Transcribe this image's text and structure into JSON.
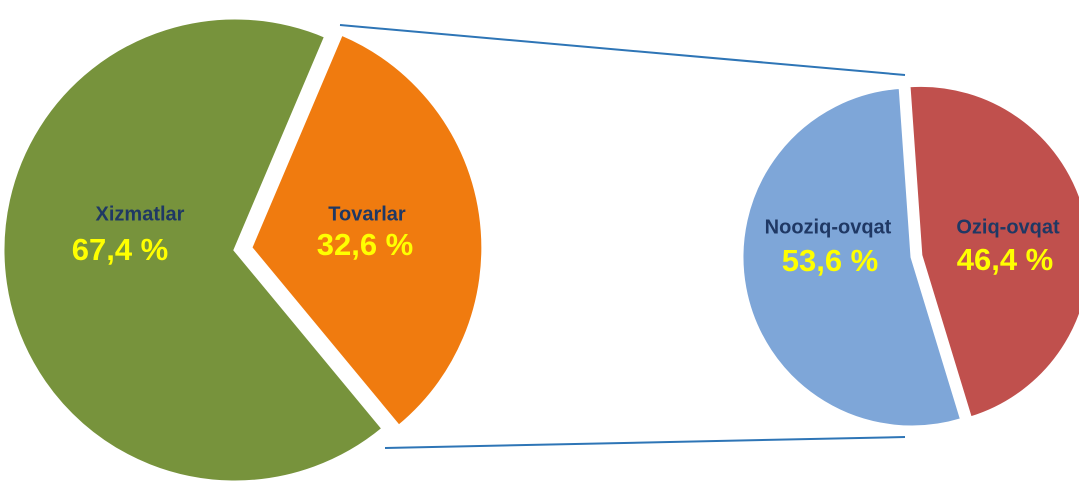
{
  "chart_data": [
    {
      "type": "pie",
      "categories": [
        "Xizmatlar",
        "Tovarlar"
      ],
      "values": [
        67.4,
        32.6
      ],
      "value_labels": [
        "67,4 %",
        "32,6 %"
      ],
      "colors": [
        "#77933c",
        "#f07b0f"
      ]
    },
    {
      "type": "pie",
      "categories": [
        "Nooziq-ovqat",
        "Oziq-ovqat"
      ],
      "values": [
        53.6,
        46.4
      ],
      "value_labels": [
        "53,6 %",
        "46,4 %"
      ],
      "colors": [
        "#7ea6d8",
        "#c0504d"
      ]
    }
  ]
}
